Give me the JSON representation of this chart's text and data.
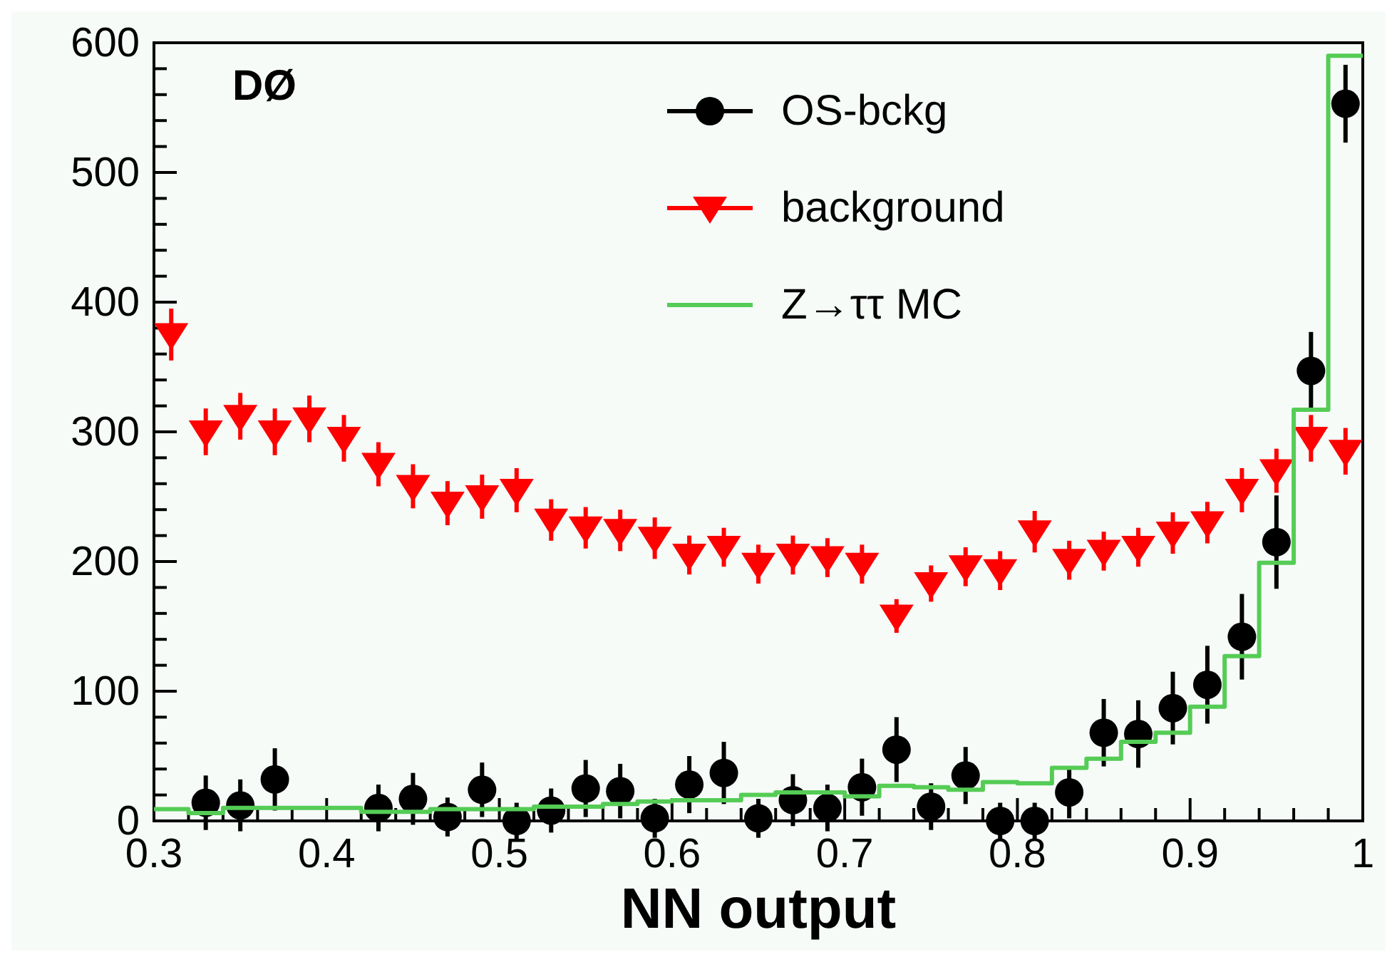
{
  "chart_data": {
    "type": "scatter",
    "xlabel": "NN output",
    "annotations": [
      "DØ"
    ],
    "xlim": [
      0.3,
      1
    ],
    "xticks": [
      0.3,
      {
        "value": 0.32,
        "label": null
      },
      {
        "value": 0.34,
        "label": null
      },
      {
        "value": 0.36,
        "label": null
      },
      {
        "value": 0.38,
        "label": null
      },
      0.4,
      {
        "value": 0.42,
        "label": null
      },
      {
        "value": 0.44,
        "label": null
      },
      {
        "value": 0.46,
        "label": null
      },
      {
        "value": 0.48,
        "label": null
      },
      0.5,
      {
        "value": 0.52,
        "label": null
      },
      {
        "value": 0.54,
        "label": null
      },
      {
        "value": 0.56,
        "label": null
      },
      {
        "value": 0.58,
        "label": null
      },
      0.6,
      {
        "value": 0.62,
        "label": null
      },
      {
        "value": 0.64,
        "label": null
      },
      {
        "value": 0.66,
        "label": null
      },
      {
        "value": 0.68,
        "label": null
      },
      0.7,
      {
        "value": 0.72,
        "label": null
      },
      {
        "value": 0.74,
        "label": null
      },
      {
        "value": 0.76,
        "label": null
      },
      {
        "value": 0.78,
        "label": null
      },
      0.8,
      {
        "value": 0.82,
        "label": null
      },
      {
        "value": 0.84,
        "label": null
      },
      {
        "value": 0.86,
        "label": null
      },
      {
        "value": 0.88,
        "label": null
      },
      0.9,
      {
        "value": 0.92,
        "label": null
      },
      {
        "value": 0.94,
        "label": null
      },
      {
        "value": 0.96,
        "label": null
      },
      {
        "value": 0.98,
        "label": null
      },
      {
        "value": 1,
        "label": "1"
      }
    ],
    "ylim": [
      0,
      600
    ],
    "yticks": [
      0,
      {
        "value": 20,
        "label": null
      },
      {
        "value": 40,
        "label": null
      },
      {
        "value": 60,
        "label": null
      },
      {
        "value": 80,
        "label": null
      },
      100,
      {
        "value": 120,
        "label": null
      },
      {
        "value": 140,
        "label": null
      },
      {
        "value": 160,
        "label": null
      },
      {
        "value": 180,
        "label": null
      },
      200,
      {
        "value": 220,
        "label": null
      },
      {
        "value": 240,
        "label": null
      },
      {
        "value": 260,
        "label": null
      },
      {
        "value": 280,
        "label": null
      },
      300,
      {
        "value": 320,
        "label": null
      },
      {
        "value": 340,
        "label": null
      },
      {
        "value": 360,
        "label": null
      },
      {
        "value": 380,
        "label": null
      },
      400,
      {
        "value": 420,
        "label": null
      },
      {
        "value": 440,
        "label": null
      },
      {
        "value": 460,
        "label": null
      },
      {
        "value": 480,
        "label": null
      },
      500,
      {
        "value": 520,
        "label": null
      },
      {
        "value": 540,
        "label": null
      },
      {
        "value": 560,
        "label": null
      },
      {
        "value": 580,
        "label": null
      },
      600
    ],
    "grid": false,
    "legend": "top right",
    "series": [
      {
        "name": "OS-bckg",
        "type": "scatter",
        "marker": "circle",
        "color": "#000000",
        "x": [
          0.33,
          0.35,
          0.37,
          0.43,
          0.45,
          0.47,
          0.49,
          0.51,
          0.53,
          0.55,
          0.57,
          0.59,
          0.61,
          0.63,
          0.65,
          0.67,
          0.69,
          0.71,
          0.73,
          0.75,
          0.77,
          0.79,
          0.81,
          0.83,
          0.85,
          0.87,
          0.89,
          0.91,
          0.93,
          0.95,
          0.97,
          0.99
        ],
        "values": [
          14,
          12,
          32,
          10,
          17,
          3,
          24,
          0,
          8,
          25,
          23,
          2,
          28,
          37,
          2,
          16,
          10,
          26,
          55,
          11,
          35,
          0,
          0,
          22,
          68,
          67,
          87,
          105,
          142,
          215,
          347,
          553
        ],
        "errors": [
          21,
          20,
          24,
          18,
          20,
          15,
          21,
          14,
          17,
          22,
          21,
          15,
          22,
          24,
          15,
          20,
          18,
          22,
          25,
          18,
          22,
          14,
          14,
          20,
          26,
          26,
          28,
          30,
          33,
          36,
          30,
          30
        ]
      },
      {
        "name": "background",
        "type": "scatter",
        "marker": "triangle",
        "color": "#ff0000",
        "x": [
          0.31,
          0.33,
          0.35,
          0.37,
          0.39,
          0.41,
          0.43,
          0.45,
          0.47,
          0.49,
          0.51,
          0.53,
          0.55,
          0.57,
          0.59,
          0.61,
          0.63,
          0.65,
          0.67,
          0.69,
          0.71,
          0.73,
          0.75,
          0.77,
          0.79,
          0.81,
          0.83,
          0.85,
          0.87,
          0.89,
          0.91,
          0.93,
          0.95,
          0.97,
          0.99
        ],
        "values": [
          375,
          300,
          312,
          300,
          310,
          295,
          275,
          258,
          245,
          250,
          255,
          232,
          226,
          224,
          218,
          205,
          211,
          198,
          205,
          203,
          198,
          158,
          183,
          196,
          193,
          223,
          201,
          208,
          211,
          222,
          230,
          255,
          270,
          295,
          285
        ],
        "errors": [
          20,
          18,
          18,
          18,
          18,
          18,
          17,
          17,
          17,
          17,
          17,
          16,
          16,
          16,
          16,
          15,
          15,
          15,
          15,
          15,
          15,
          13,
          14,
          15,
          15,
          16,
          15,
          15,
          15,
          16,
          16,
          17,
          17,
          18,
          18
        ]
      },
      {
        "name": "Z→ττ MC",
        "type": "histogram",
        "color": "#55cc55",
        "bins": [
          0.3,
          0.32,
          0.34,
          0.36,
          0.38,
          0.4,
          0.42,
          0.44,
          0.46,
          0.48,
          0.5,
          0.52,
          0.54,
          0.56,
          0.58,
          0.6,
          0.62,
          0.64,
          0.66,
          0.68,
          0.7,
          0.72,
          0.74,
          0.76,
          0.78,
          0.8,
          0.82,
          0.84,
          0.86,
          0.88,
          0.9,
          0.92,
          0.94,
          0.96,
          0.98,
          1
        ],
        "values": [
          9,
          6,
          10,
          10,
          10,
          10,
          7,
          7,
          9,
          9,
          9,
          11,
          11,
          13,
          15,
          16,
          16,
          20,
          22,
          22,
          19,
          27,
          26,
          24,
          30,
          29,
          41,
          48,
          61,
          68,
          88,
          127,
          199,
          317,
          590
        ]
      }
    ]
  }
}
